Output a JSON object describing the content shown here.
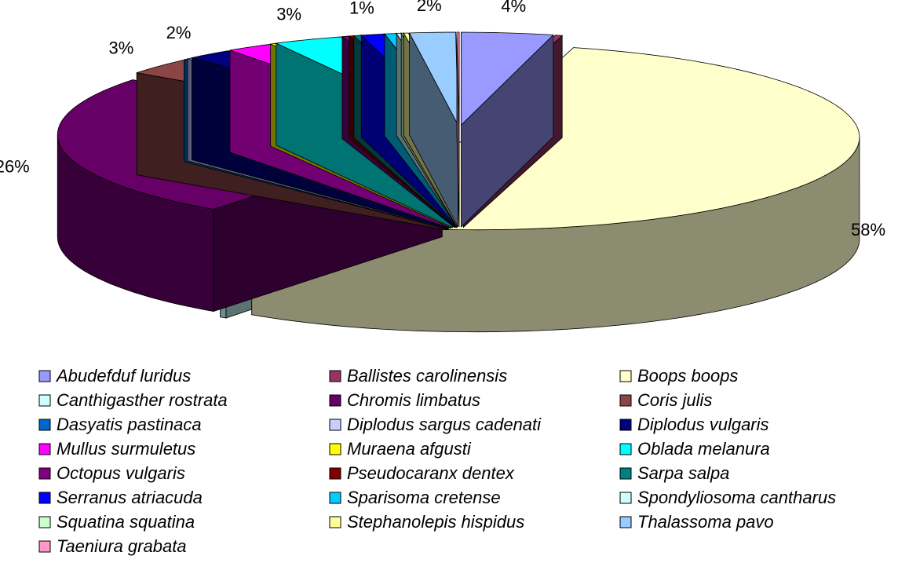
{
  "chart_data": {
    "type": "pie3d",
    "categories": [
      "Abudefduf luridus",
      "Ballistes carolinensis",
      "Boops boops",
      "Canthigasther rostrata",
      "Chromis limbatus",
      "Coris julis",
      "Dasyatis pastinaca",
      "Diplodus sargus cadenati",
      "Diplodus vulgaris",
      "Mullus surmuletus",
      "Muraena afgusti",
      "Oblada melanura",
      "Octopus vulgaris",
      "Pseudocaranx dentex",
      "Sarpa salpa",
      "Serranus atriacuda",
      "Sparisoma cretense",
      "Spondyliosoma cantharus",
      "Squatina squatina",
      "Stephanolepis hispidus",
      "Thalassoma pavo",
      "Taeniura grabata"
    ],
    "values": [
      4,
      0.3,
      58,
      0.3,
      26,
      3,
      0.2,
      0.2,
      2,
      2,
      0.2,
      3,
      0.3,
      0.2,
      0.3,
      1,
      0.5,
      0.2,
      0.1,
      0.2,
      2,
      0.1
    ],
    "value_labels": [
      "4%",
      null,
      "58%",
      null,
      "26%",
      "3%",
      null,
      null,
      "2%",
      null,
      null,
      "3%",
      null,
      null,
      null,
      "1%",
      null,
      null,
      null,
      null,
      "2%",
      null
    ],
    "colors": [
      "#9999ff",
      "#993366",
      "#ffffcc",
      "#ccffff",
      "#660066",
      "#8b4545",
      "#0066cc",
      "#ccccff",
      "#000080",
      "#ff00ff",
      "#ffff00",
      "#00ffff",
      "#800080",
      "#800000",
      "#008080",
      "#0000ff",
      "#00ccff",
      "#ccffff",
      "#ccffcc",
      "#ffff99",
      "#99ccff",
      "#ff99cc"
    ],
    "legend": "bottom"
  }
}
